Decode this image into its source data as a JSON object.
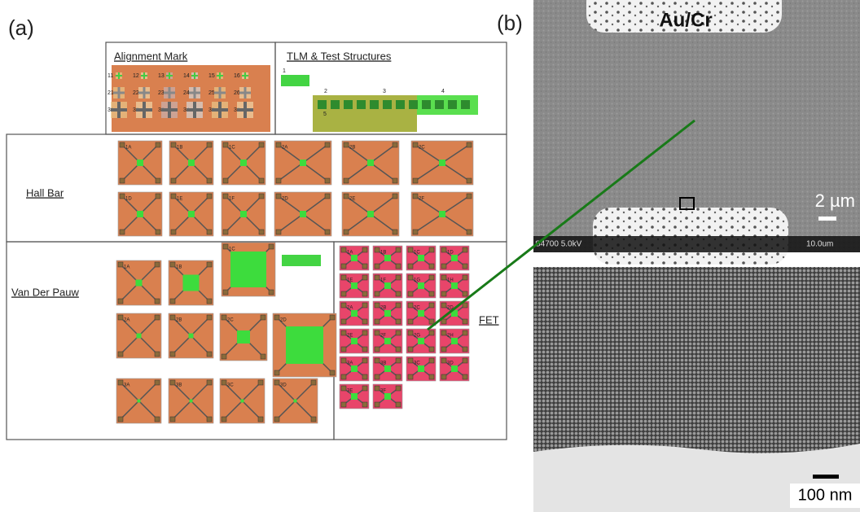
{
  "panel_a": {
    "label": "(a)",
    "alignment_mark": {
      "title": "Alignment Mark",
      "marks": [
        "11",
        "12",
        "13",
        "14",
        "15",
        "16",
        "21",
        "22",
        "23",
        "24",
        "25",
        "26",
        "31",
        "32",
        "33",
        "34",
        "35",
        "36"
      ]
    },
    "tlm": {
      "title": "TLM & Test Structures",
      "labels": [
        "1",
        "2",
        "3",
        "4",
        "5"
      ]
    },
    "hall_bar": {
      "title": "Hall Bar",
      "devices": [
        "1A",
        "1B",
        "1C",
        "2A",
        "2B",
        "2C",
        "1D",
        "1E",
        "1F",
        "2D",
        "2E",
        "2F"
      ]
    },
    "van_der_pauw": {
      "title": "Van Der Pauw",
      "devices": [
        "1A",
        "1B",
        "1C",
        "2A",
        "2B",
        "2C",
        "2D",
        "3A",
        "3B",
        "3C",
        "3D"
      ]
    },
    "fet": {
      "title": "FET",
      "devices": [
        "1A",
        "1B",
        "1C",
        "1D",
        "1E",
        "1F",
        "1G",
        "1H",
        "2A",
        "2B",
        "2C",
        "2D",
        "2E",
        "2F",
        "2G",
        "2H",
        "3A",
        "3B",
        "3C",
        "3D",
        "3E",
        "3F"
      ]
    }
  },
  "panel_b": {
    "label": "(b)",
    "electrode_label": "Au/Cr",
    "scale_top": "2 µm",
    "instrument": "S4700 5.0kV",
    "scale_inner": "10.0um",
    "scale_bottom": "100 nm"
  }
}
